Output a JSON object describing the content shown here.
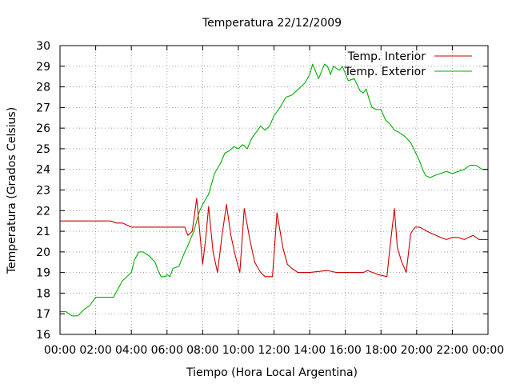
{
  "chart_data": {
    "type": "line",
    "title": "Temperatura 22/12/2009",
    "xlabel": "Tiempo (Hora Local Argentina)",
    "ylabel": "Temperatura (Grados Celsius)",
    "xlim": [
      "00:00",
      "24:00"
    ],
    "ylim": [
      16,
      30
    ],
    "x_ticks": [
      "00:00",
      "02:00",
      "04:00",
      "06:00",
      "08:00",
      "10:00",
      "12:00",
      "14:00",
      "16:00",
      "18:00",
      "20:00",
      "22:00",
      "00:00"
    ],
    "y_ticks": [
      "16",
      "17",
      "18",
      "19",
      "20",
      "21",
      "22",
      "23",
      "24",
      "25",
      "26",
      "27",
      "28",
      "29",
      "30"
    ],
    "grid": true,
    "legend_position": "top-right",
    "series": [
      {
        "name": "Temp. Interior",
        "color": "#d00000",
        "x": [
          "00:00",
          "01:30",
          "02:50",
          "03:10",
          "03:30",
          "04:00",
          "05:00",
          "05:40",
          "06:20",
          "07:00",
          "07:10",
          "07:25",
          "07:40",
          "07:50",
          "08:00",
          "08:10",
          "08:20",
          "08:35",
          "08:50",
          "09:05",
          "09:20",
          "09:35",
          "09:50",
          "10:05",
          "10:20",
          "10:40",
          "10:55",
          "11:15",
          "11:30",
          "11:55",
          "12:10",
          "12:30",
          "12:45",
          "13:00",
          "13:20",
          "13:40",
          "14:00",
          "15:00",
          "15:30",
          "16:00",
          "17:00",
          "17:15",
          "17:50",
          "18:20",
          "18:30",
          "18:45",
          "18:55",
          "19:10",
          "19:25",
          "19:40",
          "19:55",
          "20:10",
          "20:35",
          "20:50",
          "21:05",
          "21:20",
          "21:40",
          "22:00",
          "22:20",
          "22:40",
          "22:55",
          "23:10",
          "23:30",
          "23:45",
          "24:00"
        ],
        "y": [
          21.5,
          21.5,
          21.5,
          21.4,
          21.4,
          21.2,
          21.2,
          21.2,
          21.2,
          21.2,
          20.8,
          21.0,
          22.6,
          21.0,
          19.4,
          20.6,
          22.2,
          20.0,
          19.0,
          20.8,
          22.3,
          20.8,
          19.8,
          19.0,
          22.1,
          20.5,
          19.5,
          19.0,
          18.8,
          18.8,
          21.9,
          20.2,
          19.4,
          19.2,
          19.0,
          19.0,
          19.0,
          19.1,
          19.0,
          19.0,
          19.0,
          19.1,
          18.9,
          18.8,
          20.2,
          22.1,
          20.2,
          19.5,
          19.0,
          20.9,
          21.2,
          21.2,
          21.0,
          20.9,
          20.8,
          20.7,
          20.6,
          20.7,
          20.7,
          20.6,
          20.7,
          20.8,
          20.6,
          20.6,
          20.6
        ]
      },
      {
        "name": "Temp. Exterior",
        "color": "#00b000",
        "x": [
          "00:00",
          "00:20",
          "00:40",
          "01:00",
          "01:20",
          "01:40",
          "02:00",
          "02:30",
          "02:50",
          "03:00",
          "03:15",
          "03:30",
          "04:00",
          "04:10",
          "04:25",
          "04:40",
          "04:50",
          "05:00",
          "05:20",
          "05:30",
          "05:40",
          "05:55",
          "06:00",
          "06:10",
          "06:20",
          "06:40",
          "07:00",
          "07:10",
          "07:30",
          "07:50",
          "08:00",
          "08:20",
          "08:40",
          "09:00",
          "09:15",
          "09:30",
          "09:45",
          "10:00",
          "10:15",
          "10:30",
          "10:45",
          "11:00",
          "11:15",
          "11:30",
          "11:45",
          "12:00",
          "12:20",
          "12:40",
          "13:00",
          "13:15",
          "13:30",
          "13:45",
          "14:00",
          "14:10",
          "14:30",
          "14:50",
          "15:00",
          "15:10",
          "15:20",
          "15:40",
          "15:50",
          "16:10",
          "16:30",
          "16:50",
          "17:00",
          "17:10",
          "17:20",
          "17:30",
          "17:45",
          "18:00",
          "18:15",
          "18:30",
          "18:45",
          "19:00",
          "19:20",
          "19:40",
          "19:50",
          "20:10",
          "20:20",
          "20:30",
          "20:45",
          "21:00",
          "21:20",
          "21:40",
          "22:00",
          "22:20",
          "22:40",
          "22:50",
          "23:00",
          "23:20",
          "23:40",
          "24:00"
        ],
        "y": [
          17.1,
          17.1,
          16.9,
          16.9,
          17.2,
          17.4,
          17.8,
          17.8,
          17.8,
          17.8,
          18.2,
          18.6,
          19.0,
          19.6,
          20.0,
          20.0,
          19.9,
          19.8,
          19.5,
          19.1,
          18.8,
          18.8,
          18.9,
          18.8,
          19.2,
          19.3,
          20.0,
          20.3,
          21.0,
          22.0,
          22.3,
          22.8,
          23.8,
          24.3,
          24.8,
          24.9,
          25.1,
          25.0,
          25.2,
          25.0,
          25.5,
          25.8,
          26.1,
          25.9,
          26.1,
          26.6,
          27.0,
          27.5,
          27.6,
          27.8,
          28.0,
          28.2,
          28.6,
          29.1,
          28.4,
          29.1,
          29.0,
          28.6,
          29.0,
          28.8,
          29.0,
          28.3,
          28.4,
          27.8,
          27.7,
          27.9,
          27.4,
          27.0,
          26.9,
          26.9,
          26.4,
          26.2,
          25.9,
          25.8,
          25.6,
          25.3,
          25.0,
          24.4,
          24.0,
          23.7,
          23.6,
          23.7,
          23.8,
          23.9,
          23.8,
          23.9,
          24.0,
          24.1,
          24.2,
          24.2,
          24.0,
          24.0
        ]
      }
    ]
  }
}
